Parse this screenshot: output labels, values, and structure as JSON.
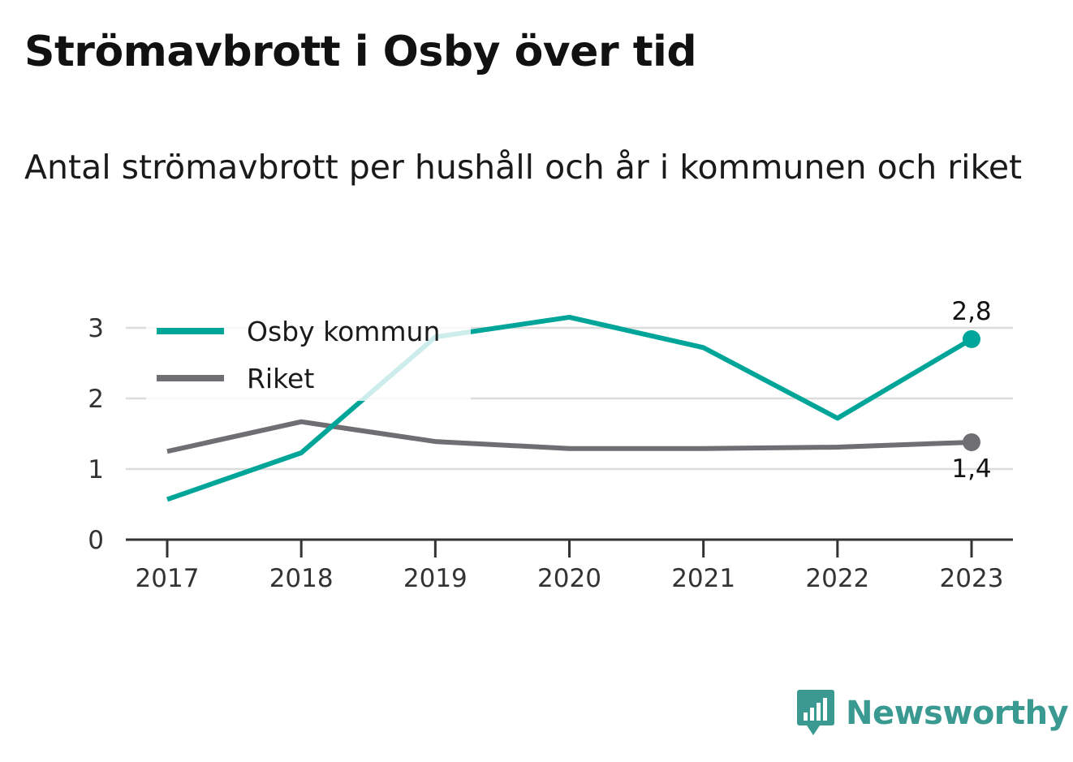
{
  "title": "Strömavbrott i Osby över tid",
  "subtitle": "Antal strömavbrott per hushåll och år i kommunen och riket",
  "brand": {
    "name": "Newsworthy",
    "icon": "newsworthy-logo-icon",
    "color": "#3a9a92"
  },
  "chart_data": {
    "type": "line",
    "x": [
      "2017",
      "2018",
      "2019",
      "2020",
      "2021",
      "2022",
      "2023"
    ],
    "ylim": [
      0,
      3.3
    ],
    "yticks": [
      "0",
      "1",
      "2",
      "3"
    ],
    "grid": true,
    "legend": "top-left",
    "series": [
      {
        "name": "Osby kommun",
        "color": "#00a599",
        "values": [
          0.57,
          1.23,
          2.87,
          3.15,
          2.72,
          1.72,
          2.84
        ],
        "end_label": "2,8"
      },
      {
        "name": "Riket",
        "color": "#6e6e73",
        "values": [
          1.25,
          1.67,
          1.39,
          1.29,
          1.29,
          1.31,
          1.38
        ],
        "end_label": "1,4"
      }
    ]
  }
}
